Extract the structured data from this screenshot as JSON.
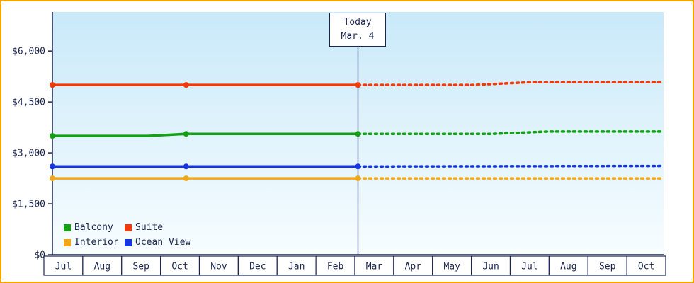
{
  "colors": {
    "frame_border": "#f0a500",
    "axis": "#1b2653",
    "text": "#1b2653",
    "plot_top": "#c9e9f9",
    "plot_bottom": "#f7fdff",
    "cell_fill": "#ffffff"
  },
  "chart_data": {
    "type": "line",
    "title": "",
    "xlabel": "",
    "ylabel": "",
    "x_axis": {
      "months": [
        "Jul",
        "Aug",
        "Sep",
        "Oct",
        "Nov",
        "Dec",
        "Jan",
        "Feb",
        "Mar",
        "Apr",
        "May",
        "Jun",
        "Jul",
        "Aug",
        "Sep",
        "Oct"
      ]
    },
    "y_axis": {
      "ticks": [
        0,
        1500,
        3000,
        4500,
        6000
      ],
      "tick_labels": [
        "$0",
        "$1,500",
        "$3,000",
        "$4,500",
        "$6,000"
      ],
      "max": 7150
    },
    "today": {
      "line1": "Today",
      "line2": "Mar. 4",
      "month_index": 8
    },
    "series": [
      {
        "name": "Interior",
        "color": "#f0a818",
        "solid": [
          [
            0,
            2250
          ],
          [
            3.5,
            2250
          ],
          [
            8,
            2250
          ]
        ],
        "dotted": [
          [
            8,
            2250
          ],
          [
            16,
            2250
          ]
        ],
        "markers": [
          [
            0,
            2250
          ],
          [
            3.5,
            2250
          ],
          [
            8,
            2250
          ]
        ]
      },
      {
        "name": "Ocean View",
        "color": "#1536e0",
        "solid": [
          [
            0,
            2600
          ],
          [
            3.5,
            2600
          ],
          [
            8,
            2600
          ]
        ],
        "dotted": [
          [
            8,
            2600
          ],
          [
            16,
            2615
          ]
        ],
        "markers": [
          [
            0,
            2600
          ],
          [
            3.5,
            2600
          ],
          [
            8,
            2600
          ]
        ]
      },
      {
        "name": "Balcony",
        "color": "#14a014",
        "solid": [
          [
            0,
            3500
          ],
          [
            2.5,
            3500
          ],
          [
            3.5,
            3560
          ],
          [
            8,
            3560
          ]
        ],
        "dotted": [
          [
            8,
            3560
          ],
          [
            11.5,
            3560
          ],
          [
            13,
            3630
          ],
          [
            16,
            3630
          ]
        ],
        "markers": [
          [
            0,
            3500
          ],
          [
            3.5,
            3560
          ],
          [
            8,
            3560
          ]
        ]
      },
      {
        "name": "Suite",
        "color": "#f13a0c",
        "solid": [
          [
            0,
            5000
          ],
          [
            3.5,
            5000
          ],
          [
            8,
            5000
          ]
        ],
        "dotted": [
          [
            8,
            5000
          ],
          [
            11,
            5000
          ],
          [
            12.5,
            5080
          ],
          [
            16,
            5080
          ]
        ],
        "markers": [
          [
            0,
            5000
          ],
          [
            3.5,
            5000
          ],
          [
            8,
            5000
          ]
        ]
      }
    ],
    "legend": [
      {
        "label": "Balcony",
        "color": "#14a014"
      },
      {
        "label": "Suite",
        "color": "#f13a0c"
      },
      {
        "label": "Interior",
        "color": "#f0a818"
      },
      {
        "label": "Ocean View",
        "color": "#1536e0"
      }
    ]
  }
}
